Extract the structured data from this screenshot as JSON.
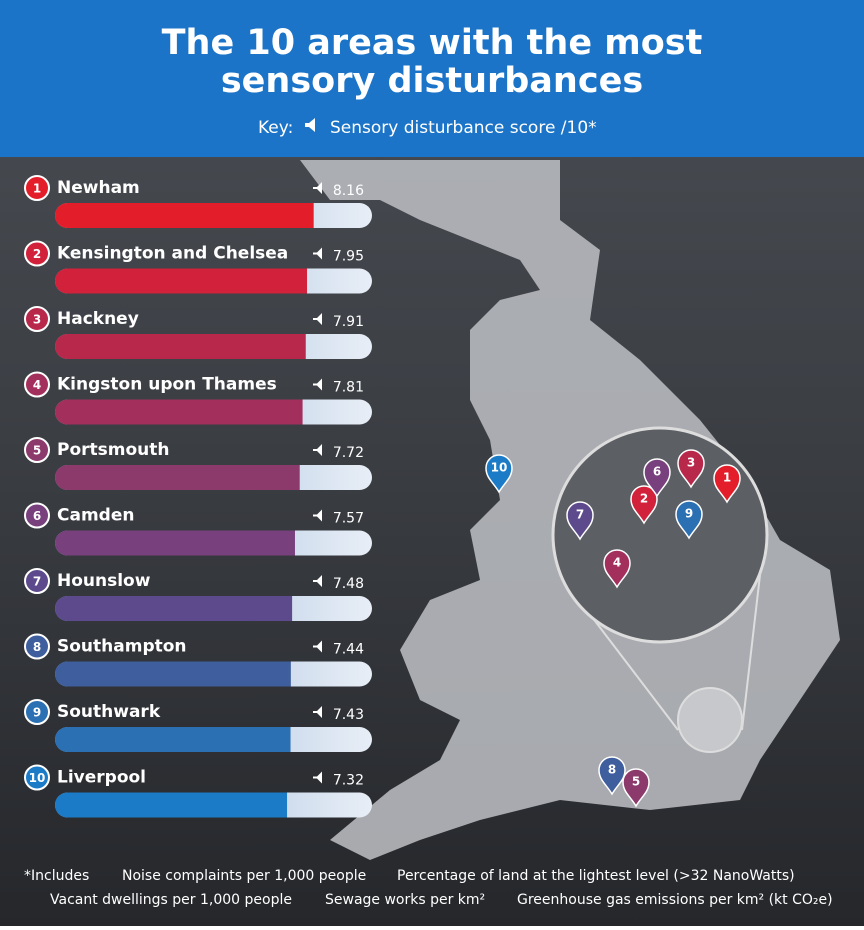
{
  "chart_data": {
    "type": "bar",
    "orientation": "horizontal",
    "title": [
      "The 10 areas with the most",
      "sensory disturbances"
    ],
    "key_label": "Key:",
    "key_text": "Sensory disturbance score /10*",
    "ranks": [
      1,
      2,
      3,
      4,
      5,
      6,
      7,
      8,
      9,
      10
    ],
    "categories": [
      "Newham",
      "Kensington and Chelsea",
      "Hackney",
      "Kingston upon Thames",
      "Portsmouth",
      "Camden",
      "Hounslow",
      "Southampton",
      "Southwark",
      "Liverpool"
    ],
    "values": [
      8.16,
      7.95,
      7.91,
      7.81,
      7.72,
      7.57,
      7.48,
      7.44,
      7.43,
      7.32
    ],
    "colors": [
      "#e31e2a",
      "#d2213a",
      "#b8284a",
      "#a32f5c",
      "#8c396c",
      "#78407d",
      "#5c4a8d",
      "#3f5e9e",
      "#2a70b3",
      "#1c7bc6"
    ],
    "xlim": [
      0,
      10
    ],
    "footnotes": {
      "intro": "*Includes",
      "items": [
        "Noise complaints per 1,000 people",
        "Percentage of land at the lightest level (>32 NanoWatts)",
        "Vacant dwellings per 1,000 people",
        "Sewage works per km²",
        "Greenhouse gas emissions per km² (kt CO₂e)"
      ]
    }
  }
}
